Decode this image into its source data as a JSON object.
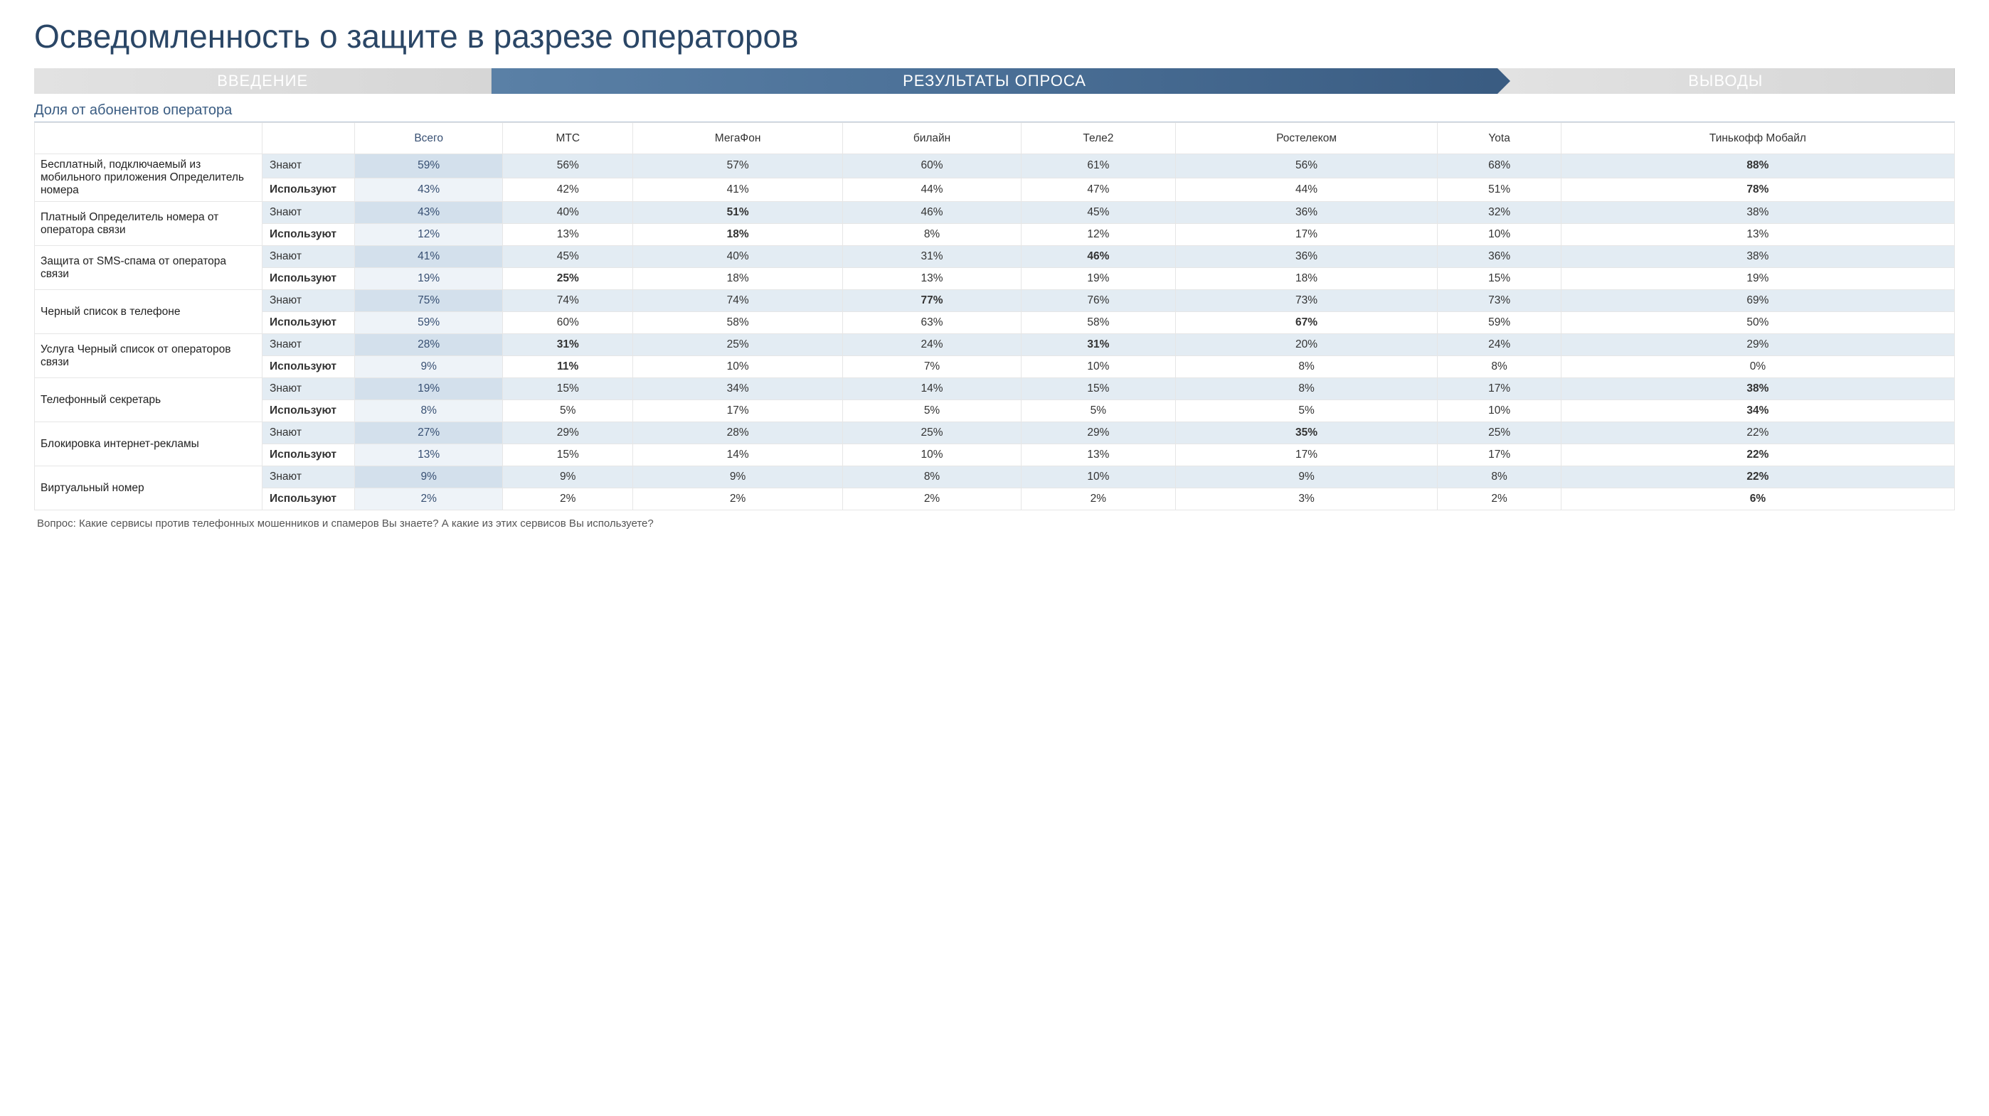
{
  "title": "Осведомленность о защите в разрезе операторов",
  "tabs": {
    "intro": "ВВЕДЕНИЕ",
    "results": "РЕЗУЛЬТАТЫ ОПРОСА",
    "conclusions": "ВЫВОДЫ"
  },
  "subtitle": "Доля от абонентов оператора",
  "columns": [
    "",
    "",
    "Всего",
    "МТС",
    "МегаФон",
    "билайн",
    "Теле2",
    "Ростелеком",
    "Yota",
    "Тинькофф Мобайл"
  ],
  "metric_labels": {
    "know": "Знают",
    "use": "Используют"
  },
  "services": [
    {
      "name": "Бесплатный, подключаемый из мобильного приложения Определитель номера",
      "know": [
        "59%",
        "56%",
        "57%",
        "60%",
        "61%",
        "56%",
        "68%",
        "88%"
      ],
      "use": [
        "43%",
        "42%",
        "41%",
        "44%",
        "47%",
        "44%",
        "51%",
        "78%"
      ],
      "bold_know": [
        7
      ],
      "bold_use": [
        7
      ]
    },
    {
      "name": "Платный Определитель номера от оператора связи",
      "know": [
        "43%",
        "40%",
        "51%",
        "46%",
        "45%",
        "36%",
        "32%",
        "38%"
      ],
      "use": [
        "12%",
        "13%",
        "18%",
        "8%",
        "12%",
        "17%",
        "10%",
        "13%"
      ],
      "bold_know": [
        2
      ],
      "bold_use": [
        2
      ]
    },
    {
      "name": "Защита от SMS-спама от оператора связи",
      "know": [
        "41%",
        "45%",
        "40%",
        "31%",
        "46%",
        "36%",
        "36%",
        "38%"
      ],
      "use": [
        "19%",
        "25%",
        "18%",
        "13%",
        "19%",
        "18%",
        "15%",
        "19%"
      ],
      "bold_know": [
        4
      ],
      "bold_use": [
        1
      ]
    },
    {
      "name": "Черный список в телефоне",
      "know": [
        "75%",
        "74%",
        "74%",
        "77%",
        "76%",
        "73%",
        "73%",
        "69%"
      ],
      "use": [
        "59%",
        "60%",
        "58%",
        "63%",
        "58%",
        "67%",
        "59%",
        "50%"
      ],
      "bold_know": [
        3
      ],
      "bold_use": [
        5
      ]
    },
    {
      "name": "Услуга Черный список от операторов связи",
      "know": [
        "28%",
        "31%",
        "25%",
        "24%",
        "31%",
        "20%",
        "24%",
        "29%"
      ],
      "use": [
        "9%",
        "11%",
        "10%",
        "7%",
        "10%",
        "8%",
        "8%",
        "0%"
      ],
      "bold_know": [
        1,
        4
      ],
      "bold_use": [
        1
      ]
    },
    {
      "name": "Телефонный секретарь",
      "know": [
        "19%",
        "15%",
        "34%",
        "14%",
        "15%",
        "8%",
        "17%",
        "38%"
      ],
      "use": [
        "8%",
        "5%",
        "17%",
        "5%",
        "5%",
        "5%",
        "10%",
        "34%"
      ],
      "bold_know": [
        7
      ],
      "bold_use": [
        7
      ]
    },
    {
      "name": "Блокировка интернет-рекламы",
      "know": [
        "27%",
        "29%",
        "28%",
        "25%",
        "29%",
        "35%",
        "25%",
        "22%"
      ],
      "use": [
        "13%",
        "15%",
        "14%",
        "10%",
        "13%",
        "17%",
        "17%",
        "22%"
      ],
      "bold_know": [
        5
      ],
      "bold_use": [
        7
      ]
    },
    {
      "name": "Виртуальный номер",
      "know": [
        "9%",
        "9%",
        "9%",
        "8%",
        "10%",
        "9%",
        "8%",
        "22%"
      ],
      "use": [
        "2%",
        "2%",
        "2%",
        "2%",
        "2%",
        "3%",
        "2%",
        "6%"
      ],
      "bold_know": [
        7
      ],
      "bold_use": [
        7
      ]
    }
  ],
  "footnote": "Вопрос: Какие сервисы против телефонных мошенников и спамеров Вы знаете? А какие из этих сервисов Вы используете?",
  "colors": {
    "title": "#2a4666",
    "tab_inactive_bg": "#d6d6d6",
    "tab_active_from": "#5a80a6",
    "tab_active_to": "#3a5c82",
    "row_know_bg": "#e3ecf3",
    "vsego_know_bg": "#d3e0ec",
    "vsego_use_bg": "#eef3f8",
    "border": "#e6e6e6"
  }
}
